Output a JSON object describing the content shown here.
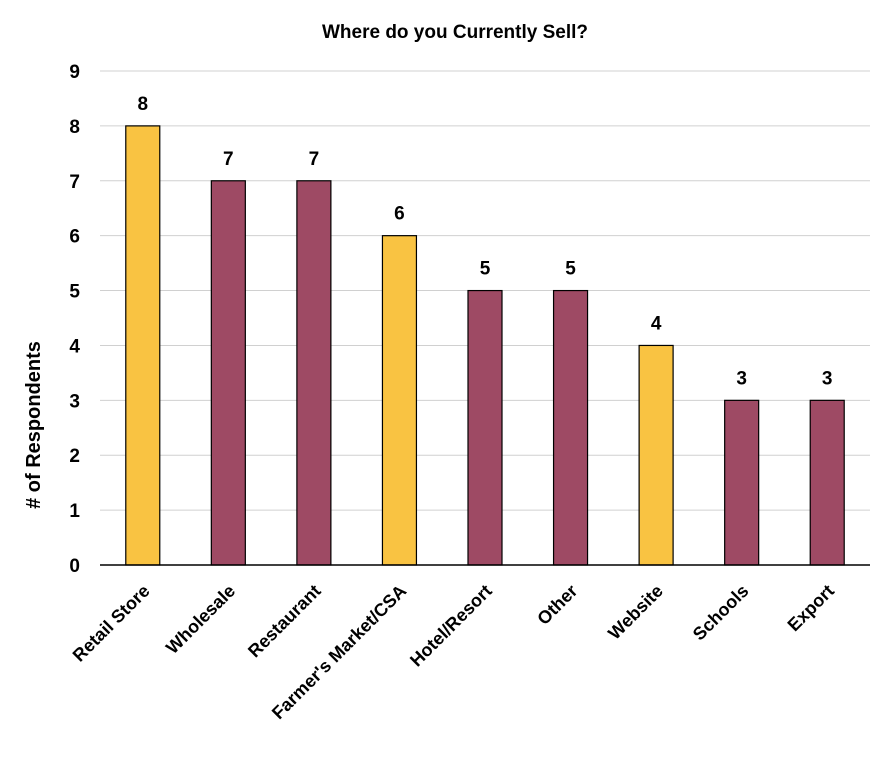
{
  "chart_data": {
    "type": "bar",
    "title": "Where do you Currently Sell?",
    "xlabel": "",
    "ylabel": "# of Respondents",
    "ylim": [
      0,
      9
    ],
    "yticks": [
      0,
      1,
      2,
      3,
      4,
      5,
      6,
      7,
      8,
      9
    ],
    "grid": "horizontal",
    "legend": "none",
    "categories": [
      "Retail Store",
      "Wholesale",
      "Restaurant",
      "Farmer's Market/CSA",
      "Hotel/Resort",
      "Other",
      "Website",
      "Schools",
      "Export"
    ],
    "values": [
      8,
      7,
      7,
      6,
      5,
      5,
      4,
      3,
      3
    ],
    "data_labels": [
      "8",
      "7",
      "7",
      "6",
      "5",
      "5",
      "4",
      "3",
      "3"
    ],
    "bar_colors": [
      "#F9C342",
      "#9E4A64",
      "#9E4A64",
      "#F9C342",
      "#9E4A64",
      "#9E4A64",
      "#F9C342",
      "#9E4A64",
      "#9E4A64"
    ],
    "bar_outline_color": "#000000",
    "grid_color": "#d0d0d0"
  }
}
